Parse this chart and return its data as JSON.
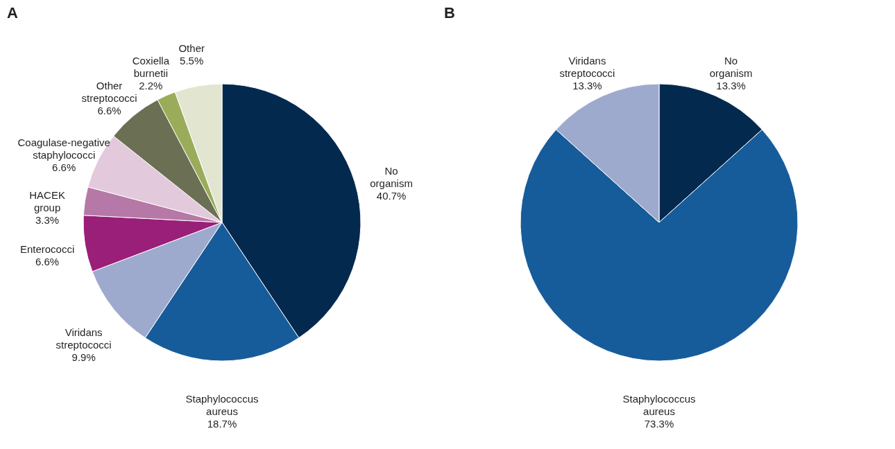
{
  "chart_data": [
    {
      "type": "pie",
      "title": "A",
      "categories": [
        "No organism",
        "Staphylococcus aureus",
        "Viridans streptococci",
        "Enterococci",
        "HACEK group",
        "Coagulase-negative staphylococci",
        "Other streptococci",
        "Coxiella burnetii",
        "Other"
      ],
      "values": [
        40.7,
        18.7,
        9.9,
        6.6,
        3.3,
        6.6,
        6.6,
        2.2,
        5.5
      ],
      "colors": [
        "#03294f",
        "#175c9a",
        "#9eaacd",
        "#9a1f79",
        "#b678a6",
        "#e3c9dc",
        "#6b7054",
        "#9aac5a",
        "#e2e6d0"
      ],
      "value_labels": [
        "40.7%",
        "18.7%",
        "9.9%",
        "6.6%",
        "3.3%",
        "6.6%",
        "6.6%",
        "2.2%",
        "5.5%"
      ]
    },
    {
      "type": "pie",
      "title": "B",
      "categories": [
        "No organism",
        "Staphylococcus aureus",
        "Viridans streptococci"
      ],
      "values": [
        13.3,
        73.3,
        13.3
      ],
      "colors": [
        "#03294f",
        "#175c9a",
        "#9eaacd"
      ],
      "value_labels": [
        "13.3%",
        "73.3%",
        "13.3%"
      ]
    }
  ]
}
